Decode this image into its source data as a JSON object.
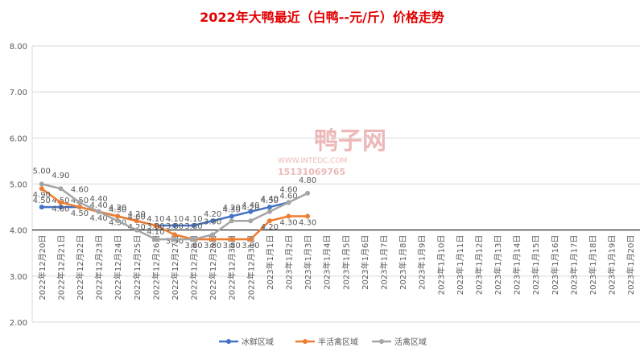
{
  "chart_data": {
    "type": "line",
    "title": "2022年大鸭最近（白鸭--元/斤）价格走势",
    "watermark": [
      "鸭子网",
      "WWW.INTEDC.COM",
      "15131069765"
    ],
    "categories": [
      "2022年12月20日",
      "2022年12月21日",
      "2022年12月22日",
      "2022年12月23日",
      "2022年12月24日",
      "2022年12月25日",
      "2022年12月26日",
      "2022年12月27日",
      "2022年12月28日",
      "2022年12月29日",
      "2022年12月30日",
      "2022年12月31日",
      "2023年1月1日",
      "2023年1月2日",
      "2023年1月3日",
      "2023年1月4日",
      "2023年1月5日",
      "2023年1月6日",
      "2023年1月7日",
      "2023年1月8日",
      "2023年1月9日",
      "2023年1月10日",
      "2023年1月11日",
      "2023年1月12日",
      "2023年1月13日",
      "2023年1月14日",
      "2023年1月15日",
      "2023年1月16日",
      "2023年1月17日",
      "2023年1月18日",
      "2023年1月19日",
      "2023年1月20日"
    ],
    "ylim": [
      2,
      8
    ],
    "yticks": [
      {
        "value": 2,
        "label": "2.00"
      },
      {
        "value": 3,
        "label": "3.00"
      },
      {
        "value": 4,
        "label": "4.00"
      },
      {
        "value": 5,
        "label": "5.00"
      },
      {
        "value": 6,
        "label": "6.00"
      },
      {
        "value": 7,
        "label": "7.00"
      },
      {
        "value": 8,
        "label": "8.00"
      }
    ],
    "x_axis_crosses": 4,
    "grid": true,
    "legend": "bottom",
    "series": [
      {
        "name": "冰鲜区域",
        "color": "#4472c4",
        "values": [
          4.5,
          4.5,
          4.5,
          4.4,
          4.3,
          4.2,
          4.1,
          4.1,
          4.1,
          4.2,
          4.3,
          4.4,
          4.5,
          4.6,
          null,
          null,
          null,
          null,
          null,
          null,
          null,
          null,
          null,
          null,
          null,
          null,
          null,
          null,
          null,
          null,
          null,
          null
        ],
        "value_labels": [
          "4.50",
          "4.50",
          "4.50",
          "4.40",
          "4.30",
          "4.20",
          "4.10",
          "4.10",
          "4.10",
          "4.20",
          "4.30",
          "4.40",
          "4.50",
          "4.60",
          null,
          null,
          null,
          null,
          null,
          null,
          null,
          null,
          null,
          null,
          null,
          null,
          null,
          null,
          null,
          null,
          null,
          null
        ]
      },
      {
        "name": "半活禽区域",
        "color": "#ed7d31",
        "values": [
          4.9,
          4.6,
          4.5,
          4.4,
          4.3,
          4.2,
          4.1,
          3.9,
          3.8,
          3.8,
          3.8,
          3.8,
          4.2,
          4.3,
          4.3,
          null,
          null,
          null,
          null,
          null,
          null,
          null,
          null,
          null,
          null,
          null,
          null,
          null,
          null,
          null,
          null,
          null
        ],
        "value_labels": [
          "4.90",
          "4.60",
          "4.50",
          "4.40",
          "4.30",
          "4.20",
          "4.10",
          "3.90",
          "3.80",
          "3.80",
          "3.80",
          "3.80",
          "4.20",
          "4.30",
          "4.30",
          null,
          null,
          null,
          null,
          null,
          null,
          null,
          null,
          null,
          null,
          null,
          null,
          null,
          null,
          null,
          null,
          null
        ]
      },
      {
        "name": "活禽区域",
        "color": "#a5a5a5",
        "values": [
          5.0,
          4.9,
          4.6,
          4.4,
          4.2,
          4.0,
          3.8,
          3.8,
          3.8,
          3.9,
          4.2,
          4.2,
          4.4,
          4.6,
          4.8,
          null,
          null,
          null,
          null,
          null,
          null,
          null,
          null,
          null,
          null,
          null,
          null,
          null,
          null,
          null,
          null,
          null
        ],
        "value_labels": [
          "5.00",
          "4.90",
          "4.60",
          "4.40",
          "4.20",
          "4.00",
          "3.80",
          "3.80",
          "3.80",
          "3.90",
          "4.20",
          "4.20",
          "4.40",
          "4.60",
          "4.80",
          null,
          null,
          null,
          null,
          null,
          null,
          null,
          null,
          null,
          null,
          null,
          null,
          null,
          null,
          null,
          null,
          null
        ]
      }
    ]
  }
}
